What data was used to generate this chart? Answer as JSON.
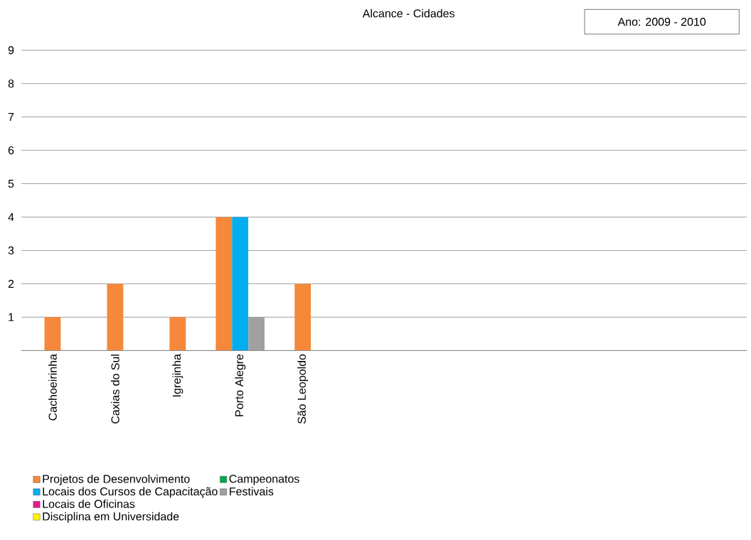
{
  "chart_data": {
    "type": "bar",
    "title": "Alcance - Cidades",
    "annotations": [
      "Ano: 2009 - 2010"
    ],
    "categories": [
      "Cachoeirinha",
      "Caxias do Sul",
      "Igrejinha",
      "Porto Alegre",
      "São Leopoldo"
    ],
    "series": [
      {
        "name": "Projetos de Desenvolvimento",
        "color": "#f5883a",
        "values": [
          1,
          2,
          1,
          4,
          2
        ]
      },
      {
        "name": "Locais dos Cursos de Capacitação",
        "color": "#00aeef",
        "values": [
          null,
          null,
          null,
          4,
          null
        ]
      },
      {
        "name": "Locais de Oficinas",
        "color": "#e5198b",
        "values": [
          null,
          null,
          null,
          null,
          null
        ]
      },
      {
        "name": "Disciplina em Universidade",
        "color": "#fff200",
        "values": [
          null,
          null,
          null,
          null,
          null
        ]
      },
      {
        "name": "Campeonatos",
        "color": "#00a651",
        "values": [
          null,
          null,
          null,
          null,
          null
        ]
      },
      {
        "name": "Festivais",
        "color": "#a0a0a0",
        "values": [
          null,
          null,
          null,
          1,
          null
        ]
      }
    ],
    "ylim": [
      0,
      9
    ],
    "yticks": [
      1,
      2,
      3,
      4,
      5,
      6,
      7,
      8,
      9
    ],
    "grid": "y",
    "legend": "bottom left"
  }
}
